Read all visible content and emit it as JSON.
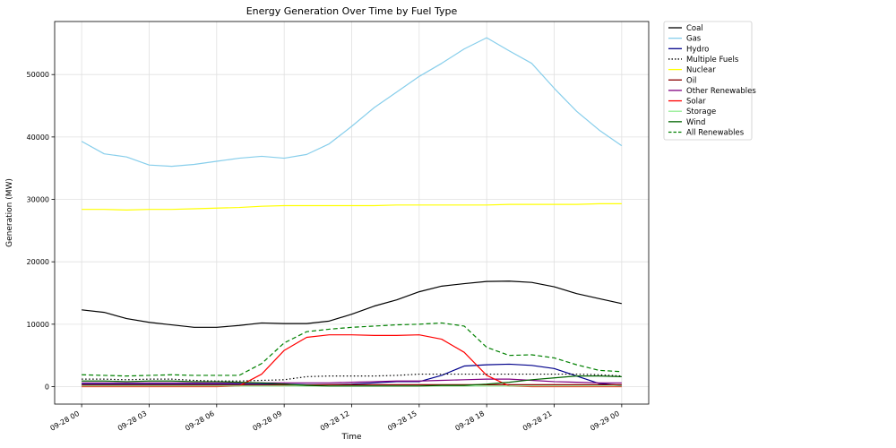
{
  "chart_data": {
    "type": "line",
    "title": "Energy Generation Over Time by Fuel Type",
    "xlabel": "Time",
    "ylabel": "Generation (MW)",
    "xlim": [
      -1.2,
      25.2
    ],
    "ylim": [
      -2800,
      58500
    ],
    "grid": true,
    "legend_position": "outside-top-right",
    "x_ticks": [
      {
        "value": 0,
        "label": "09-28 00"
      },
      {
        "value": 3,
        "label": "09-28 03"
      },
      {
        "value": 6,
        "label": "09-28 06"
      },
      {
        "value": 9,
        "label": "09-28 09"
      },
      {
        "value": 12,
        "label": "09-28 12"
      },
      {
        "value": 15,
        "label": "09-28 15"
      },
      {
        "value": 18,
        "label": "09-28 18"
      },
      {
        "value": 21,
        "label": "09-28 21"
      },
      {
        "value": 24,
        "label": "09-29 00"
      }
    ],
    "y_ticks": [
      {
        "value": 0,
        "label": "0"
      },
      {
        "value": 10000,
        "label": "10000"
      },
      {
        "value": 20000,
        "label": "20000"
      },
      {
        "value": 30000,
        "label": "30000"
      },
      {
        "value": 40000,
        "label": "40000"
      },
      {
        "value": 50000,
        "label": "50000"
      }
    ],
    "x": [
      0,
      1,
      2,
      3,
      4,
      5,
      6,
      7,
      8,
      9,
      10,
      11,
      12,
      13,
      14,
      15,
      16,
      17,
      18,
      19,
      20,
      21,
      22,
      23,
      24
    ],
    "series": [
      {
        "name": "Coal",
        "color": "#000000",
        "dash": "solid",
        "values": [
          12300,
          11900,
          10900,
          10300,
          9900,
          9500,
          9500,
          9800,
          10200,
          10100,
          10100,
          10500,
          11600,
          12900,
          13900,
          15200,
          16100,
          16500,
          16850,
          16900,
          16700,
          16000,
          14900,
          14100,
          13300
        ]
      },
      {
        "name": "Gas",
        "color": "#87ceeb",
        "dash": "solid",
        "values": [
          39300,
          37300,
          36800,
          35500,
          35300,
          35600,
          36100,
          36600,
          36900,
          36600,
          37200,
          38900,
          41700,
          44700,
          47200,
          49700,
          51800,
          54100,
          55900,
          53800,
          51800,
          47800,
          44100,
          41100,
          38600
        ]
      },
      {
        "name": "Hydro",
        "color": "#00008b",
        "dash": "solid",
        "values": [
          400,
          400,
          400,
          400,
          400,
          400,
          400,
          400,
          400,
          400,
          300,
          300,
          400,
          600,
          800,
          800,
          1800,
          3300,
          3500,
          3600,
          3400,
          2900,
          1700,
          500,
          200
        ]
      },
      {
        "name": "Multiple Fuels",
        "color": "#000000",
        "dash": "dotted",
        "values": [
          1200,
          1200,
          1100,
          1200,
          1200,
          1000,
          900,
          900,
          1000,
          1100,
          1600,
          1700,
          1700,
          1700,
          1800,
          2000,
          2000,
          2000,
          2000,
          2000,
          2000,
          2000,
          2000,
          1900,
          1700
        ]
      },
      {
        "name": "Nuclear",
        "color": "#ffff00",
        "dash": "solid",
        "values": [
          28400,
          28400,
          28300,
          28400,
          28400,
          28500,
          28600,
          28700,
          28900,
          29000,
          29000,
          29000,
          29000,
          29000,
          29100,
          29100,
          29100,
          29100,
          29100,
          29200,
          29200,
          29200,
          29200,
          29300,
          29300
        ]
      },
      {
        "name": "Oil",
        "color": "#8b0000",
        "dash": "solid",
        "values": [
          250,
          250,
          250,
          250,
          250,
          250,
          250,
          250,
          250,
          250,
          250,
          300,
          300,
          300,
          300,
          300,
          300,
          300,
          300,
          300,
          300,
          300,
          300,
          300,
          300
        ]
      },
      {
        "name": "Other Renewables",
        "color": "#800080",
        "dash": "solid",
        "values": [
          600,
          600,
          600,
          600,
          600,
          600,
          600,
          600,
          600,
          600,
          600,
          600,
          700,
          800,
          900,
          900,
          1000,
          1100,
          1200,
          1200,
          1000,
          800,
          700,
          600,
          600
        ]
      },
      {
        "name": "Solar",
        "color": "#ff0000",
        "dash": "solid",
        "values": [
          0,
          0,
          0,
          0,
          0,
          0,
          0,
          100,
          2000,
          5800,
          7900,
          8300,
          8300,
          8200,
          8200,
          8300,
          7600,
          5500,
          1800,
          100,
          0,
          0,
          0,
          0,
          0
        ]
      },
      {
        "name": "Storage",
        "color": "#90ee90",
        "dash": "solid",
        "values": [
          100,
          100,
          100,
          100,
          100,
          100,
          100,
          100,
          100,
          100,
          100,
          100,
          100,
          100,
          100,
          100,
          100,
          100,
          100,
          100,
          100,
          100,
          100,
          100,
          100
        ]
      },
      {
        "name": "Wind",
        "color": "#006400",
        "dash": "solid",
        "values": [
          900,
          900,
          800,
          900,
          900,
          800,
          800,
          700,
          600,
          400,
          200,
          100,
          100,
          100,
          100,
          100,
          200,
          200,
          400,
          700,
          1100,
          1400,
          1700,
          1700,
          1600
        ]
      },
      {
        "name": "All Renewables",
        "color": "#008000",
        "dash": "dashed",
        "values": [
          1900,
          1800,
          1700,
          1800,
          1900,
          1800,
          1800,
          1800,
          3700,
          7000,
          8800,
          9200,
          9500,
          9700,
          9900,
          10000,
          10200,
          9700,
          6300,
          5000,
          5100,
          4600,
          3500,
          2600,
          2400
        ]
      }
    ]
  }
}
